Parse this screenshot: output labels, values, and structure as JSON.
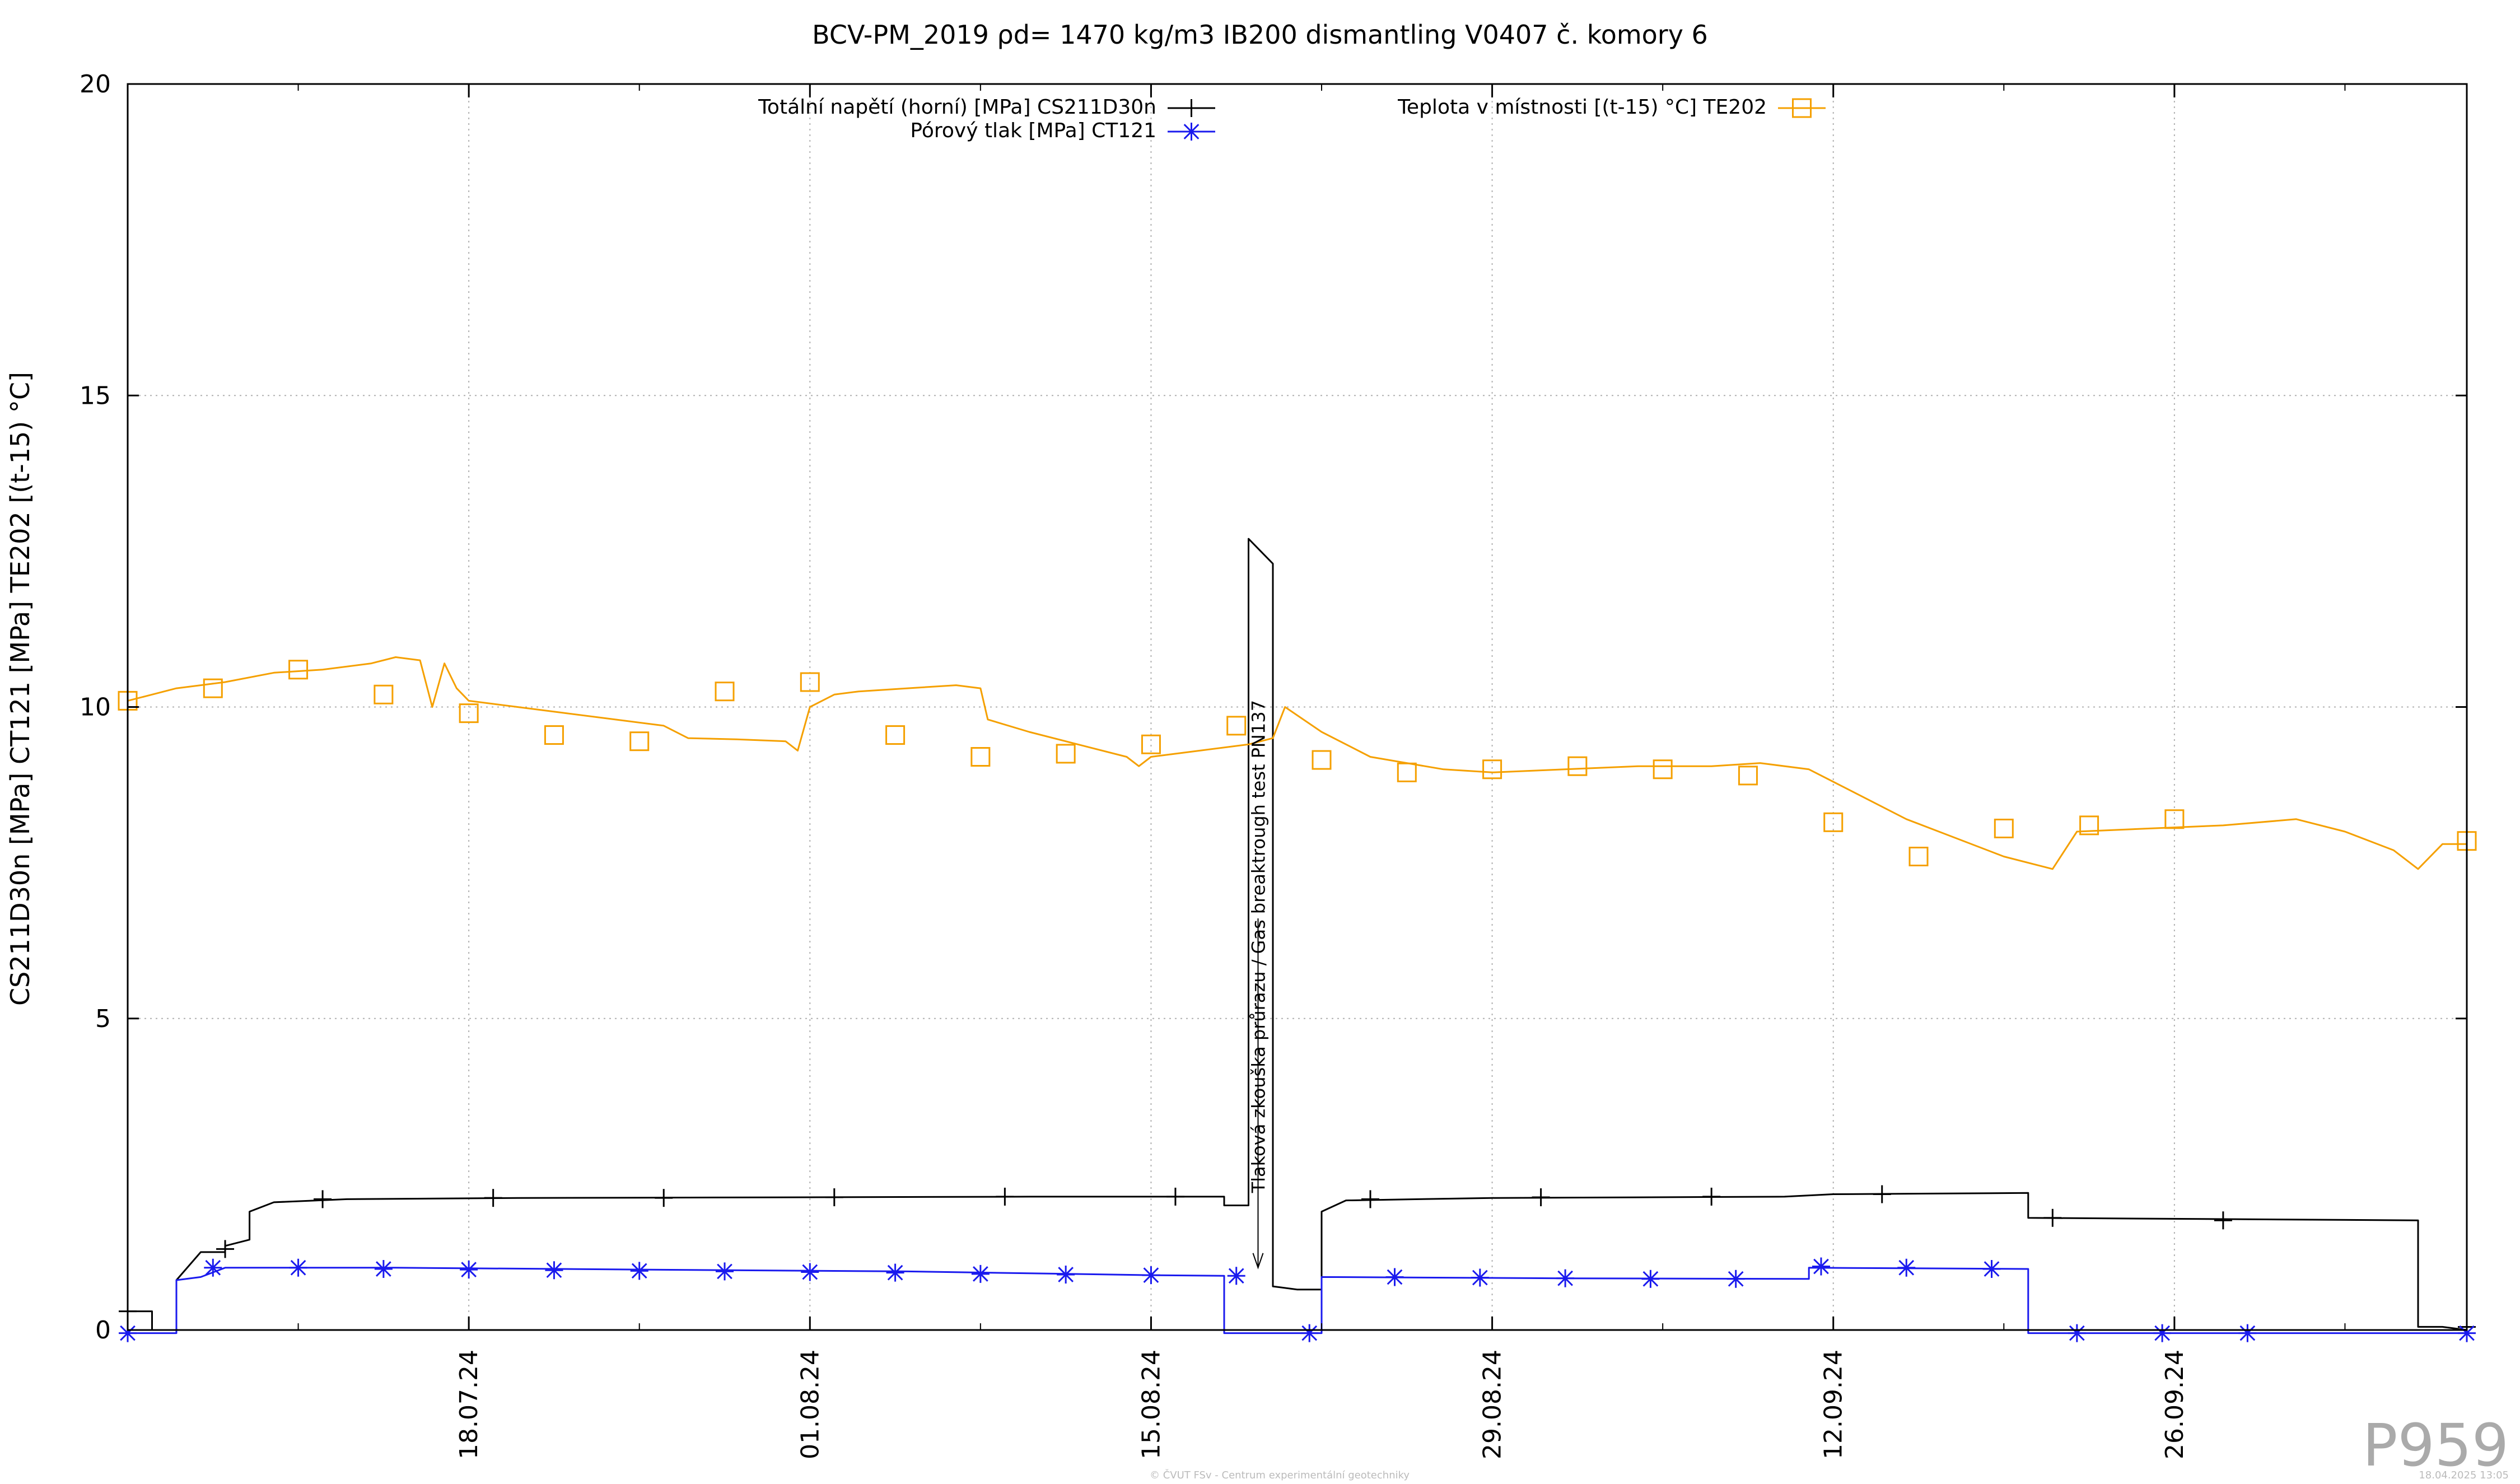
{
  "page": {
    "id_label": "P959",
    "footer_left": "© ČVUT FSv - Centrum experimentální geotechniky",
    "footer_right": "18.04.2025 13:05"
  },
  "chart_data": {
    "type": "line",
    "title": "BCV-PM_2019 ρd= 1470 kg/m3 IB200 dismantling V0407 č. komory 6",
    "ylabel": "CS211D30n [MPa] CT121 [MPa] TE202 [(t-15) °C]",
    "xlabel": "",
    "xlim": [
      "2024-07-04",
      "2024-10-08"
    ],
    "ylim": [
      0,
      20
    ],
    "yticks": [
      0,
      5,
      10,
      15,
      20
    ],
    "xticks": [
      {
        "date": "2024-07-18",
        "label": "18.07.24"
      },
      {
        "date": "2024-08-01",
        "label": "01.08.24"
      },
      {
        "date": "2024-08-15",
        "label": "15.08.24"
      },
      {
        "date": "2024-08-29",
        "label": "29.08.24"
      },
      {
        "date": "2024-09-12",
        "label": "12.09.24"
      },
      {
        "date": "2024-09-26",
        "label": "26.09.24"
      }
    ],
    "grid": true,
    "legend_position": "top",
    "annotation": {
      "text": "Tlaková zkouška průrazu / Gas breaktrough test PN137",
      "date": "2024-08-21",
      "y_from": 12.0,
      "y_to": 1.0
    },
    "series": [
      {
        "name": "Totální napětí (horní) [MPa] CS211D30n",
        "color": "#000000",
        "marker": "plus",
        "points": [
          [
            "2024-07-04",
            0.3
          ],
          [
            "2024-07-05",
            0.3
          ],
          [
            "2024-07-05",
            0.0
          ],
          [
            "2024-07-06",
            0.0
          ],
          [
            "2024-07-06",
            0.8
          ],
          [
            "2024-07-07",
            1.25
          ],
          [
            "2024-07-08",
            1.25
          ],
          [
            "2024-07-08",
            1.35
          ],
          [
            "2024-07-09",
            1.45
          ],
          [
            "2024-07-09",
            1.9
          ],
          [
            "2024-07-10",
            2.05
          ],
          [
            "2024-07-13",
            2.1
          ],
          [
            "2024-07-20",
            2.12
          ],
          [
            "2024-08-01",
            2.13
          ],
          [
            "2024-08-10",
            2.14
          ],
          [
            "2024-08-18",
            2.14
          ],
          [
            "2024-08-18",
            2.0
          ],
          [
            "2024-08-19",
            2.0
          ],
          [
            "2024-08-19",
            12.7
          ],
          [
            "2024-08-20",
            12.3
          ],
          [
            "2024-08-20",
            0.7
          ],
          [
            "2024-08-21",
            0.65
          ],
          [
            "2024-08-22",
            0.65
          ],
          [
            "2024-08-22",
            1.9
          ],
          [
            "2024-08-23",
            2.08
          ],
          [
            "2024-08-29",
            2.12
          ],
          [
            "2024-09-10",
            2.14
          ],
          [
            "2024-09-12",
            2.18
          ],
          [
            "2024-09-20",
            2.2
          ],
          [
            "2024-09-20",
            1.8
          ],
          [
            "2024-10-06",
            1.76
          ],
          [
            "2024-10-06",
            0.05
          ],
          [
            "2024-10-07",
            0.05
          ],
          [
            "2024-10-08",
            0.0
          ]
        ],
        "marker_points": [
          [
            "2024-07-04",
            0.3
          ],
          [
            "2024-07-08",
            1.3
          ],
          [
            "2024-07-12",
            2.1
          ],
          [
            "2024-07-19",
            2.12
          ],
          [
            "2024-07-26",
            2.12
          ],
          [
            "2024-08-02",
            2.13
          ],
          [
            "2024-08-09",
            2.14
          ],
          [
            "2024-08-16",
            2.14
          ],
          [
            "2024-08-24",
            2.1
          ],
          [
            "2024-08-31",
            2.13
          ],
          [
            "2024-09-07",
            2.14
          ],
          [
            "2024-09-14",
            2.18
          ],
          [
            "2024-09-21",
            1.8
          ],
          [
            "2024-09-28",
            1.76
          ],
          [
            "2024-10-08",
            0.05
          ]
        ]
      },
      {
        "name": "Pórový tlak [MPa] CT121",
        "color": "#1a1aee",
        "marker": "star",
        "points": [
          [
            "2024-07-04",
            -0.05
          ],
          [
            "2024-07-06",
            -0.05
          ],
          [
            "2024-07-06",
            0.8
          ],
          [
            "2024-07-07",
            0.85
          ],
          [
            "2024-07-08",
            1.0
          ],
          [
            "2024-07-15",
            1.0
          ],
          [
            "2024-07-25",
            0.97
          ],
          [
            "2024-08-05",
            0.94
          ],
          [
            "2024-08-15",
            0.88
          ],
          [
            "2024-08-18",
            0.87
          ],
          [
            "2024-08-18",
            -0.05
          ],
          [
            "2024-08-22",
            -0.05
          ],
          [
            "2024-08-22",
            0.85
          ],
          [
            "2024-09-01",
            0.83
          ],
          [
            "2024-09-11",
            0.82
          ],
          [
            "2024-09-11",
            1.0
          ],
          [
            "2024-09-20",
            0.98
          ],
          [
            "2024-09-20",
            -0.05
          ],
          [
            "2024-10-08",
            -0.05
          ]
        ],
        "marker_points": [
          [
            "2024-07-04",
            -0.05
          ],
          [
            "2024-07-07.5",
            1.0
          ],
          [
            "2024-07-11",
            1.0
          ],
          [
            "2024-07-14.5",
            0.98
          ],
          [
            "2024-07-18",
            0.97
          ],
          [
            "2024-07-21.5",
            0.96
          ],
          [
            "2024-07-25",
            0.95
          ],
          [
            "2024-07-28.5",
            0.94
          ],
          [
            "2024-08-01",
            0.93
          ],
          [
            "2024-08-04.5",
            0.92
          ],
          [
            "2024-08-08",
            0.9
          ],
          [
            "2024-08-11.5",
            0.89
          ],
          [
            "2024-08-15",
            0.88
          ],
          [
            "2024-08-18.5",
            0.87
          ],
          [
            "2024-08-21.5",
            -0.05
          ],
          [
            "2024-08-25",
            0.85
          ],
          [
            "2024-08-28.5",
            0.84
          ],
          [
            "2024-09-01",
            0.83
          ],
          [
            "2024-09-04.5",
            0.82
          ],
          [
            "2024-09-08",
            0.82
          ],
          [
            "2024-09-11.5",
            1.02
          ],
          [
            "2024-09-15",
            1.0
          ],
          [
            "2024-09-18.5",
            0.98
          ],
          [
            "2024-09-22",
            -0.05
          ],
          [
            "2024-09-25.5",
            -0.05
          ],
          [
            "2024-09-29",
            -0.05
          ],
          [
            "2024-10-08",
            -0.05
          ]
        ]
      },
      {
        "name": "Teplota v místnosti [(t-15) °C] TE202",
        "color": "#f5a000",
        "marker": "square",
        "points": [
          [
            "2024-07-04",
            10.1
          ],
          [
            "2024-07-05",
            10.2
          ],
          [
            "2024-07-06",
            10.3
          ],
          [
            "2024-07-07",
            10.35
          ],
          [
            "2024-07-08",
            10.4
          ],
          [
            "2024-07-10",
            10.55
          ],
          [
            "2024-07-12",
            10.6
          ],
          [
            "2024-07-14",
            10.7
          ],
          [
            "2024-07-15",
            10.8
          ],
          [
            "2024-07-16",
            10.75
          ],
          [
            "2024-07-16.5",
            10.0
          ],
          [
            "2024-07-17",
            10.7
          ],
          [
            "2024-07-17.5",
            10.3
          ],
          [
            "2024-07-18",
            10.1
          ],
          [
            "2024-07-20",
            10.0
          ],
          [
            "2024-07-22",
            9.9
          ],
          [
            "2024-07-24",
            9.8
          ],
          [
            "2024-07-26",
            9.7
          ],
          [
            "2024-07-27",
            9.5
          ],
          [
            "2024-07-29",
            9.48
          ],
          [
            "2024-07-31",
            9.45
          ],
          [
            "2024-07-31.5",
            9.3
          ],
          [
            "2024-08-01",
            10.0
          ],
          [
            "2024-08-02",
            10.2
          ],
          [
            "2024-08-03",
            10.25
          ],
          [
            "2024-08-05",
            10.3
          ],
          [
            "2024-08-07",
            10.35
          ],
          [
            "2024-08-08",
            10.3
          ],
          [
            "2024-08-08.3",
            9.8
          ],
          [
            "2024-08-10",
            9.6
          ],
          [
            "2024-08-12",
            9.4
          ],
          [
            "2024-08-14",
            9.2
          ],
          [
            "2024-08-14.5",
            9.05
          ],
          [
            "2024-08-15",
            9.2
          ],
          [
            "2024-08-17",
            9.3
          ],
          [
            "2024-08-19",
            9.4
          ],
          [
            "2024-08-20",
            9.5
          ],
          [
            "2024-08-20.5",
            10.0
          ],
          [
            "2024-08-22",
            9.6
          ],
          [
            "2024-08-24",
            9.2
          ],
          [
            "2024-08-27",
            9.0
          ],
          [
            "2024-08-29",
            8.95
          ],
          [
            "2024-09-01",
            9.0
          ],
          [
            "2024-09-04",
            9.05
          ],
          [
            "2024-09-07",
            9.05
          ],
          [
            "2024-09-09",
            9.1
          ],
          [
            "2024-09-11",
            9.0
          ],
          [
            "2024-09-12",
            8.8
          ],
          [
            "2024-09-15",
            8.2
          ],
          [
            "2024-09-17",
            7.9
          ],
          [
            "2024-09-19",
            7.6
          ],
          [
            "2024-09-21",
            7.4
          ],
          [
            "2024-09-22",
            8.0
          ],
          [
            "2024-09-25",
            8.05
          ],
          [
            "2024-09-28",
            8.1
          ],
          [
            "2024-10-01",
            8.2
          ],
          [
            "2024-10-03",
            8.0
          ],
          [
            "2024-10-05",
            7.7
          ],
          [
            "2024-10-06",
            7.4
          ],
          [
            "2024-10-07",
            7.8
          ],
          [
            "2024-10-08",
            7.8
          ]
        ],
        "marker_points": [
          [
            "2024-07-04",
            10.1
          ],
          [
            "2024-07-07.5",
            10.3
          ],
          [
            "2024-07-11",
            10.6
          ],
          [
            "2024-07-14.5",
            10.2
          ],
          [
            "2024-07-18",
            9.9
          ],
          [
            "2024-07-21.5",
            9.55
          ],
          [
            "2024-07-25",
            9.45
          ],
          [
            "2024-07-28.5",
            10.25
          ],
          [
            "2024-08-01",
            10.4
          ],
          [
            "2024-08-04.5",
            9.55
          ],
          [
            "2024-08-08",
            9.2
          ],
          [
            "2024-08-11.5",
            9.25
          ],
          [
            "2024-08-15",
            9.4
          ],
          [
            "2024-08-18.5",
            9.7
          ],
          [
            "2024-08-22",
            9.15
          ],
          [
            "2024-08-25.5",
            8.95
          ],
          [
            "2024-08-29",
            9.0
          ],
          [
            "2024-09-01.5",
            9.05
          ],
          [
            "2024-09-05",
            9.0
          ],
          [
            "2024-09-08.5",
            8.9
          ],
          [
            "2024-09-12",
            8.15
          ],
          [
            "2024-09-15.5",
            7.6
          ],
          [
            "2024-09-19",
            8.05
          ],
          [
            "2024-09-22.5",
            8.1
          ],
          [
            "2024-09-26",
            8.2
          ],
          [
            "2024-10-08",
            7.85
          ]
        ]
      }
    ]
  }
}
